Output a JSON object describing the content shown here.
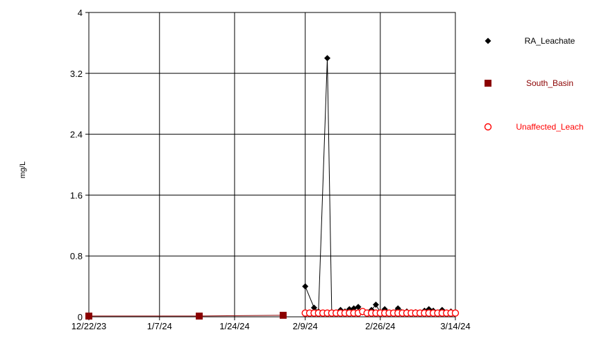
{
  "chart_data": {
    "type": "line",
    "title": "",
    "ylabel": "mg/L",
    "xlabel": "",
    "ylim": [
      0,
      4
    ],
    "xlim": [
      "2023-12-22",
      "2024-03-14"
    ],
    "grid": true,
    "legend_position": "right",
    "y_ticks": [
      "0",
      "0.8",
      "1.6",
      "2.4",
      "3.2",
      "4"
    ],
    "x_ticks": [
      {
        "date": "2023-12-22",
        "label": "12/22/23"
      },
      {
        "date": "2024-01-07",
        "label": "1/7/24"
      },
      {
        "date": "2024-01-24",
        "label": "1/24/24"
      },
      {
        "date": "2024-02-09",
        "label": "2/9/24"
      },
      {
        "date": "2024-02-26",
        "label": "2/26/24"
      },
      {
        "date": "2024-03-14",
        "label": "3/14/24"
      }
    ],
    "series": [
      {
        "name": "RA_Leachate",
        "color": "#000000",
        "marker": "diamond",
        "points": [
          [
            "2024-02-09",
            0.4
          ],
          [
            "2024-02-11",
            0.12
          ],
          [
            "2024-02-12",
            0.07
          ],
          [
            "2024-02-14",
            3.4
          ],
          [
            "2024-02-15",
            0.05
          ],
          [
            "2024-02-17",
            0.09
          ],
          [
            "2024-02-18",
            0.07
          ],
          [
            "2024-02-19",
            0.1
          ],
          [
            "2024-02-20",
            0.11
          ],
          [
            "2024-02-21",
            0.13
          ],
          [
            "2024-02-22",
            0.06
          ],
          [
            "2024-02-24",
            0.09
          ],
          [
            "2024-02-25",
            0.16
          ],
          [
            "2024-02-26",
            0.06
          ],
          [
            "2024-02-27",
            0.1
          ],
          [
            "2024-02-28",
            0.05
          ],
          [
            "2024-03-01",
            0.11
          ],
          [
            "2024-03-03",
            0.07
          ],
          [
            "2024-03-05",
            0.06
          ],
          [
            "2024-03-06",
            0.05
          ],
          [
            "2024-03-07",
            0.08
          ],
          [
            "2024-03-08",
            0.1
          ],
          [
            "2024-03-09",
            0.08
          ],
          [
            "2024-03-11",
            0.09
          ],
          [
            "2024-03-13",
            0.07
          ],
          [
            "2024-03-14",
            0.05
          ]
        ]
      },
      {
        "name": "South_Basin",
        "color": "#8b0000",
        "marker": "square",
        "points": [
          [
            "2023-12-22",
            0.01
          ],
          [
            "2024-01-16",
            0.01
          ],
          [
            "2024-02-04",
            0.02
          ]
        ]
      },
      {
        "name": "Unaffected_Leach",
        "color": "#ff0000",
        "marker": "circle",
        "points": [
          [
            "2024-02-09",
            0.05
          ],
          [
            "2024-02-10",
            0.05
          ],
          [
            "2024-02-11",
            0.05
          ],
          [
            "2024-02-12",
            0.05
          ],
          [
            "2024-02-13",
            0.05
          ],
          [
            "2024-02-14",
            0.05
          ],
          [
            "2024-02-15",
            0.05
          ],
          [
            "2024-02-16",
            0.05
          ],
          [
            "2024-02-17",
            0.05
          ],
          [
            "2024-02-18",
            0.05
          ],
          [
            "2024-02-19",
            0.05
          ],
          [
            "2024-02-20",
            0.05
          ],
          [
            "2024-02-21",
            0.05
          ],
          [
            "2024-02-22",
            0.07
          ],
          [
            "2024-02-23",
            0.05
          ],
          [
            "2024-02-24",
            0.05
          ],
          [
            "2024-02-25",
            0.05
          ],
          [
            "2024-02-26",
            0.05
          ],
          [
            "2024-02-27",
            0.05
          ],
          [
            "2024-02-28",
            0.05
          ],
          [
            "2024-02-29",
            0.05
          ],
          [
            "2024-03-01",
            0.05
          ],
          [
            "2024-03-02",
            0.05
          ],
          [
            "2024-03-03",
            0.05
          ],
          [
            "2024-03-04",
            0.05
          ],
          [
            "2024-03-05",
            0.05
          ],
          [
            "2024-03-06",
            0.05
          ],
          [
            "2024-03-07",
            0.05
          ],
          [
            "2024-03-08",
            0.05
          ],
          [
            "2024-03-09",
            0.05
          ],
          [
            "2024-03-10",
            0.05
          ],
          [
            "2024-03-11",
            0.05
          ],
          [
            "2024-03-12",
            0.05
          ],
          [
            "2024-03-13",
            0.05
          ],
          [
            "2024-03-14",
            0.05
          ]
        ]
      }
    ]
  }
}
